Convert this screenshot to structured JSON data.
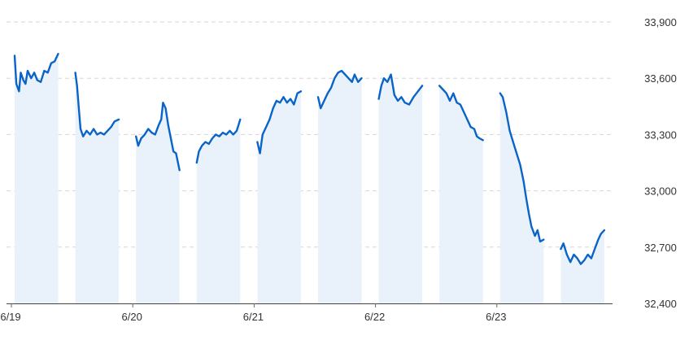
{
  "chart_data": {
    "type": "line",
    "title": "",
    "xlabel": "",
    "ylabel": "",
    "ylim": [
      32400,
      33900
    ],
    "y_ticks": [
      "33,900",
      "33,600",
      "33,300",
      "33,000",
      "32,700",
      "32,400"
    ],
    "y_tick_values": [
      33900,
      33600,
      33300,
      33000,
      32700,
      32400
    ],
    "x_tick_labels": [
      "6/19",
      "6/20",
      "6/21",
      "6/22",
      "6/23"
    ],
    "x_tick_days": [
      0,
      2,
      4,
      6,
      8
    ],
    "grid": true,
    "y_axis_side": "right",
    "colors": {
      "line": "#0a64c8",
      "band": "#e9f2fb",
      "grid": "#d6d6d6"
    },
    "series": [
      {
        "values": [
          [
            [
              0.0,
              33720
            ],
            [
              0.04,
              33570
            ],
            [
              0.1,
              33530
            ],
            [
              0.14,
              33630
            ],
            [
              0.2,
              33590
            ],
            [
              0.25,
              33570
            ],
            [
              0.3,
              33640
            ],
            [
              0.38,
              33600
            ],
            [
              0.45,
              33630
            ],
            [
              0.52,
              33590
            ],
            [
              0.6,
              33580
            ],
            [
              0.68,
              33640
            ],
            [
              0.76,
              33630
            ],
            [
              0.84,
              33680
            ],
            [
              0.92,
              33690
            ],
            [
              1.0,
              33730
            ]
          ],
          [
            [
              0.0,
              33630
            ],
            [
              0.04,
              33560
            ],
            [
              0.08,
              33440
            ],
            [
              0.12,
              33330
            ],
            [
              0.18,
              33290
            ],
            [
              0.26,
              33320
            ],
            [
              0.34,
              33300
            ],
            [
              0.42,
              33330
            ],
            [
              0.5,
              33300
            ],
            [
              0.58,
              33310
            ],
            [
              0.66,
              33300
            ],
            [
              0.74,
              33320
            ],
            [
              0.82,
              33340
            ],
            [
              0.9,
              33370
            ],
            [
              1.0,
              33380
            ]
          ],
          [
            [
              0.0,
              33290
            ],
            [
              0.05,
              33240
            ],
            [
              0.12,
              33280
            ],
            [
              0.2,
              33300
            ],
            [
              0.28,
              33330
            ],
            [
              0.36,
              33310
            ],
            [
              0.44,
              33300
            ],
            [
              0.52,
              33350
            ],
            [
              0.58,
              33380
            ],
            [
              0.62,
              33470
            ],
            [
              0.68,
              33440
            ],
            [
              0.74,
              33350
            ],
            [
              0.8,
              33280
            ],
            [
              0.86,
              33210
            ],
            [
              0.92,
              33200
            ],
            [
              1.0,
              33110
            ]
          ],
          [
            [
              0.0,
              33150
            ],
            [
              0.05,
              33210
            ],
            [
              0.12,
              33240
            ],
            [
              0.2,
              33260
            ],
            [
              0.28,
              33250
            ],
            [
              0.36,
              33280
            ],
            [
              0.44,
              33300
            ],
            [
              0.52,
              33290
            ],
            [
              0.6,
              33310
            ],
            [
              0.68,
              33300
            ],
            [
              0.76,
              33320
            ],
            [
              0.84,
              33300
            ],
            [
              0.92,
              33320
            ],
            [
              1.0,
              33380
            ]
          ],
          [
            [
              0.0,
              33260
            ],
            [
              0.06,
              33200
            ],
            [
              0.12,
              33300
            ],
            [
              0.2,
              33340
            ],
            [
              0.28,
              33380
            ],
            [
              0.36,
              33440
            ],
            [
              0.44,
              33480
            ],
            [
              0.52,
              33470
            ],
            [
              0.6,
              33500
            ],
            [
              0.68,
              33470
            ],
            [
              0.76,
              33490
            ],
            [
              0.84,
              33460
            ],
            [
              0.92,
              33520
            ],
            [
              1.0,
              33530
            ]
          ],
          [
            [
              0.0,
              33500
            ],
            [
              0.06,
              33440
            ],
            [
              0.14,
              33480
            ],
            [
              0.22,
              33520
            ],
            [
              0.3,
              33550
            ],
            [
              0.38,
              33600
            ],
            [
              0.46,
              33630
            ],
            [
              0.54,
              33640
            ],
            [
              0.62,
              33620
            ],
            [
              0.7,
              33600
            ],
            [
              0.78,
              33580
            ],
            [
              0.84,
              33620
            ],
            [
              0.92,
              33580
            ],
            [
              1.0,
              33600
            ]
          ],
          [
            [
              0.0,
              33490
            ],
            [
              0.06,
              33560
            ],
            [
              0.12,
              33600
            ],
            [
              0.2,
              33580
            ],
            [
              0.28,
              33620
            ],
            [
              0.36,
              33510
            ],
            [
              0.44,
              33480
            ],
            [
              0.52,
              33500
            ],
            [
              0.6,
              33470
            ],
            [
              0.7,
              33460
            ],
            [
              0.8,
              33500
            ],
            [
              0.9,
              33530
            ],
            [
              1.0,
              33560
            ]
          ],
          [
            [
              0.0,
              33560
            ],
            [
              0.08,
              33540
            ],
            [
              0.16,
              33520
            ],
            [
              0.24,
              33480
            ],
            [
              0.32,
              33520
            ],
            [
              0.4,
              33470
            ],
            [
              0.48,
              33460
            ],
            [
              0.56,
              33420
            ],
            [
              0.64,
              33380
            ],
            [
              0.72,
              33340
            ],
            [
              0.8,
              33330
            ],
            [
              0.86,
              33290
            ],
            [
              0.92,
              33280
            ],
            [
              1.0,
              33270
            ]
          ],
          [
            [
              0.0,
              33520
            ],
            [
              0.06,
              33500
            ],
            [
              0.14,
              33420
            ],
            [
              0.22,
              33320
            ],
            [
              0.3,
              33260
            ],
            [
              0.38,
              33200
            ],
            [
              0.46,
              33140
            ],
            [
              0.54,
              33050
            ],
            [
              0.6,
              32960
            ],
            [
              0.66,
              32880
            ],
            [
              0.72,
              32810
            ],
            [
              0.8,
              32760
            ],
            [
              0.86,
              32790
            ],
            [
              0.92,
              32730
            ],
            [
              1.0,
              32740
            ]
          ],
          [
            [
              0.0,
              32690
            ],
            [
              0.06,
              32720
            ],
            [
              0.14,
              32660
            ],
            [
              0.22,
              32620
            ],
            [
              0.3,
              32660
            ],
            [
              0.38,
              32640
            ],
            [
              0.46,
              32610
            ],
            [
              0.54,
              32630
            ],
            [
              0.62,
              32660
            ],
            [
              0.7,
              32640
            ],
            [
              0.78,
              32690
            ],
            [
              0.86,
              32740
            ],
            [
              0.92,
              32770
            ],
            [
              1.0,
              32790
            ]
          ]
        ]
      }
    ]
  }
}
